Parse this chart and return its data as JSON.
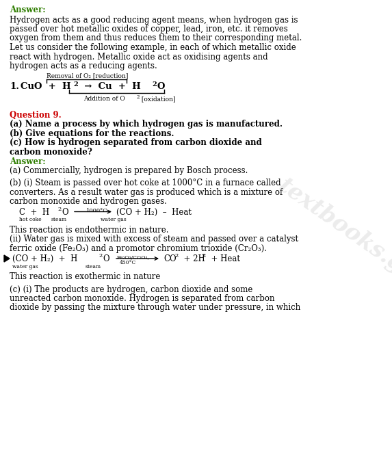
{
  "bg_color": "#ffffff",
  "green_color": "#2e7d00",
  "red_color": "#cc0000",
  "black_color": "#000000",
  "watermark": "textbooks.guru",
  "answer_label": "Answer:",
  "para1_lines": [
    "Hydrogen acts as a good reducing agent means, when hydrogen gas is",
    "passed over hot metallic oxides of copper, lead, iron, etc. it removes",
    "oxygen from them and thus reduces them to their corresponding metal.",
    "Let us consider the following example, in each of which metallic oxide",
    "react with hydrogen. Metallic oxide act as oxidising agents and",
    "hydrogen acts as a reducing agents."
  ],
  "removal_label": "Removal of O₂ [reduction]",
  "addition_label": "Addition of O₂ [oxidation]",
  "question_label": "Question 9.",
  "question_lines": [
    "(a) Name a process by which hydrogen gas is manufactured.",
    "(b) Give equations for the reactions.",
    "(c) How is hydrogen separated from carbon dioxide and",
    "carbon monoxide?"
  ],
  "answer_label2": "Answer:",
  "ans_a": "(a) Commercially, hydrogen is prepared by Bosch process.",
  "ans_b_i_lines": [
    "(b) (i) Steam is passed over hot coke at 1000°C in a furnace called",
    "converters. As a result water gas is produced which is a mixture of",
    "carbon monoxide and hydrogen gases."
  ],
  "eq2_condition": "1000°C",
  "endothermic": "This reaction is endothermic in nature.",
  "ans_b_ii_lines": [
    "(ii) Water gas is mixed with excess of steam and passed over a catalyst",
    "ferric oxide (Fe₂O₃) and a promotor chromium trioxide (Cr₂O₃)."
  ],
  "eq3_condition1": "Fe₂O₃/Cr₂O₃,",
  "eq3_condition2": "450°C",
  "exothermic": "This reaction is exothermic in nature",
  "ans_c_lines": [
    "(c) (i) The products are hydrogen, carbon dioxide and some",
    "unreacted carbon monoxide. Hydrogen is separated from carbon",
    "dioxide by passing the mixture through water under pressure, in which"
  ]
}
